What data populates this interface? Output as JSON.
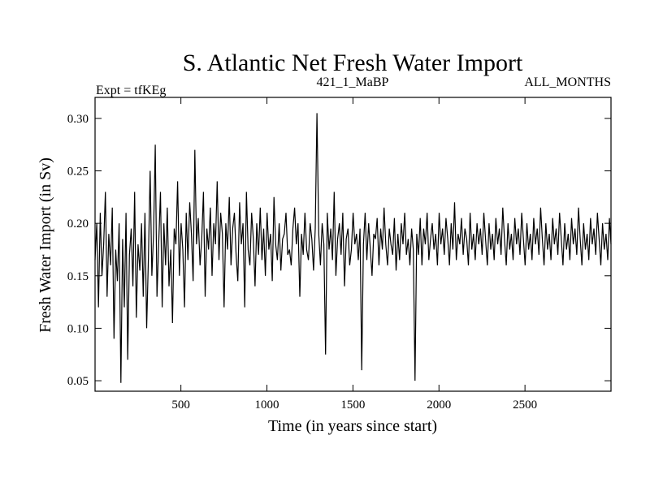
{
  "chart_data": {
    "type": "line",
    "title": "S. Atlantic Net Fresh Water Import",
    "subtitle_left": "Expt = tfKEg",
    "subtitle_center": "421_1_MaBP",
    "subtitle_right": "ALL_MONTHS",
    "xlabel": "Time (in years since start)",
    "ylabel": "Fresh Water Import (in Sv)",
    "xlim": [
      1,
      3000
    ],
    "ylim": [
      0.04,
      0.32
    ],
    "xticks": [
      500,
      1000,
      1500,
      2000,
      2500
    ],
    "xtick_labels": [
      "500",
      "1000",
      "1500",
      "2000",
      "2500"
    ],
    "yticks": [
      0.05,
      0.1,
      0.15,
      0.2,
      0.25,
      0.3
    ],
    "ytick_labels": [
      "0.05",
      "0.10",
      "0.15",
      "0.20",
      "0.25",
      "0.30"
    ],
    "grid": false,
    "legend": "none",
    "line_color": "#000000",
    "series": [
      {
        "x_step": 10,
        "x_start": 1,
        "values": [
          0.165,
          0.2,
          0.12,
          0.21,
          0.15,
          0.18,
          0.23,
          0.13,
          0.19,
          0.16,
          0.215,
          0.09,
          0.175,
          0.145,
          0.2,
          0.048,
          0.185,
          0.12,
          0.21,
          0.07,
          0.17,
          0.195,
          0.14,
          0.23,
          0.11,
          0.18,
          0.155,
          0.2,
          0.13,
          0.21,
          0.1,
          0.165,
          0.25,
          0.15,
          0.19,
          0.275,
          0.13,
          0.18,
          0.23,
          0.12,
          0.2,
          0.16,
          0.215,
          0.14,
          0.175,
          0.105,
          0.195,
          0.18,
          0.24,
          0.15,
          0.2,
          0.175,
          0.12,
          0.21,
          0.165,
          0.22,
          0.19,
          0.145,
          0.27,
          0.18,
          0.205,
          0.16,
          0.185,
          0.23,
          0.13,
          0.195,
          0.175,
          0.215,
          0.15,
          0.2,
          0.18,
          0.24,
          0.165,
          0.21,
          0.19,
          0.12,
          0.2,
          0.175,
          0.225,
          0.16,
          0.195,
          0.21,
          0.17,
          0.145,
          0.22,
          0.18,
          0.2,
          0.12,
          0.23,
          0.175,
          0.16,
          0.21,
          0.185,
          0.14,
          0.2,
          0.17,
          0.215,
          0.165,
          0.195,
          0.15,
          0.21,
          0.175,
          0.19,
          0.145,
          0.225,
          0.18,
          0.165,
          0.2,
          0.155,
          0.185,
          0.19,
          0.21,
          0.17,
          0.175,
          0.16,
          0.195,
          0.215,
          0.18,
          0.2,
          0.13,
          0.19,
          0.17,
          0.21,
          0.175,
          0.165,
          0.2,
          0.185,
          0.155,
          0.195,
          0.305,
          0.19,
          0.16,
          0.2,
          0.18,
          0.075,
          0.21,
          0.175,
          0.195,
          0.165,
          0.23,
          0.15,
          0.185,
          0.2,
          0.17,
          0.21,
          0.14,
          0.185,
          0.195,
          0.16,
          0.175,
          0.21,
          0.18,
          0.19,
          0.165,
          0.195,
          0.06,
          0.18,
          0.21,
          0.165,
          0.2,
          0.175,
          0.15,
          0.19,
          0.185,
          0.205,
          0.16,
          0.195,
          0.175,
          0.215,
          0.18,
          0.16,
          0.195,
          0.18,
          0.17,
          0.205,
          0.155,
          0.19,
          0.165,
          0.2,
          0.18,
          0.21,
          0.17,
          0.185,
          0.16,
          0.195,
          0.175,
          0.05,
          0.19,
          0.17,
          0.205,
          0.16,
          0.195,
          0.18,
          0.21,
          0.165,
          0.185,
          0.2,
          0.175,
          0.19,
          0.16,
          0.21,
          0.18,
          0.195,
          0.17,
          0.205,
          0.185,
          0.16,
          0.2,
          0.175,
          0.22,
          0.165,
          0.19,
          0.18,
          0.205,
          0.17,
          0.195,
          0.185,
          0.16,
          0.21,
          0.175,
          0.19,
          0.165,
          0.2,
          0.18,
          0.195,
          0.17,
          0.21,
          0.185,
          0.16,
          0.2,
          0.175,
          0.19,
          0.165,
          0.205,
          0.18,
          0.195,
          0.17,
          0.215,
          0.185,
          0.16,
          0.2,
          0.175,
          0.19,
          0.165,
          0.205,
          0.18,
          0.195,
          0.17,
          0.21,
          0.185,
          0.16,
          0.2,
          0.175,
          0.19,
          0.165,
          0.205,
          0.18,
          0.195,
          0.17,
          0.215,
          0.185,
          0.16,
          0.2,
          0.175,
          0.19,
          0.165,
          0.205,
          0.18,
          0.195,
          0.17,
          0.21,
          0.185,
          0.16,
          0.2,
          0.175,
          0.19,
          0.165,
          0.205,
          0.18,
          0.195,
          0.17,
          0.215,
          0.185,
          0.16,
          0.2,
          0.175,
          0.19,
          0.165,
          0.205,
          0.18,
          0.195,
          0.17,
          0.21,
          0.185,
          0.16,
          0.2,
          0.175,
          0.19,
          0.165,
          0.205,
          0.18
        ]
      }
    ]
  }
}
